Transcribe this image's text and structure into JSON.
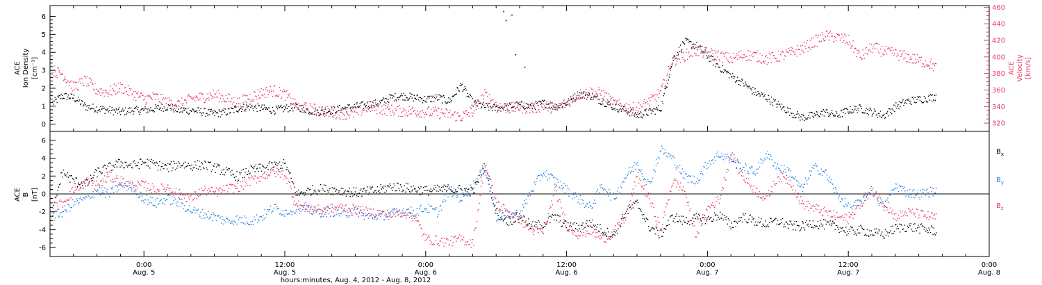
{
  "figure": {
    "xlabel": "hours:minutes, Aug.  4, 2012 - Aug.  8, 2012",
    "time_range_hours": [
      -8,
      72
    ],
    "x_ticks": [
      {
        "hour": 0,
        "time": "0:00",
        "date": "Aug. 5"
      },
      {
        "hour": 12,
        "time": "12:00",
        "date": "Aug. 5"
      },
      {
        "hour": 24,
        "time": "0:00",
        "date": "Aug. 6"
      },
      {
        "hour": 36,
        "time": "12:00",
        "date": "Aug. 6"
      },
      {
        "hour": 48,
        "time": "0:00",
        "date": "Aug. 7"
      },
      {
        "hour": 60,
        "time": "12:00",
        "date": "Aug. 7"
      },
      {
        "hour": 72,
        "time": "0:00",
        "date": "Aug. 8"
      }
    ]
  },
  "colors": {
    "black": "#000000",
    "blue": "#1f7fe0",
    "red": "#e8365f"
  },
  "chart_data": [
    {
      "type": "scatter",
      "panel": "top",
      "ylabel_left": [
        "ACE",
        "Ion Density",
        "[cm⁻³]"
      ],
      "ylabel_right": [
        "ACE",
        "Velocity",
        "[km/s]"
      ],
      "ylim_left": [
        -0.4,
        6.6
      ],
      "ylim_right": [
        310,
        462
      ],
      "yticks_left": [
        0,
        1,
        2,
        3,
        4,
        5,
        6
      ],
      "yticks_right": [
        320,
        340,
        360,
        380,
        400,
        420,
        440,
        460
      ],
      "series": [
        {
          "axis": "left",
          "color": "black",
          "x": [
            -7.8,
            -7,
            -6,
            -5,
            -4,
            -3,
            -2,
            -1,
            0,
            1,
            2,
            3,
            4,
            5,
            6,
            7,
            8,
            9,
            10,
            11,
            12,
            13,
            14,
            15,
            16,
            17,
            18,
            19,
            20,
            21,
            22,
            23,
            24,
            25,
            26,
            27,
            28,
            29,
            30,
            31,
            32,
            33,
            34,
            35,
            36,
            37,
            38,
            39,
            40,
            41,
            42,
            43,
            44,
            45,
            46,
            47,
            48,
            49,
            50,
            51,
            52,
            53,
            54,
            55,
            56,
            57,
            58,
            59,
            60,
            61,
            62,
            63,
            64,
            65,
            66,
            67,
            67.5
          ],
          "y": [
            1.2,
            1.6,
            1.5,
            1.0,
            0.9,
            0.8,
            0.7,
            0.8,
            0.8,
            0.9,
            1.0,
            0.8,
            0.8,
            0.7,
            0.6,
            0.7,
            0.9,
            1.0,
            0.9,
            0.8,
            0.9,
            1.0,
            0.8,
            0.7,
            0.8,
            0.9,
            1.0,
            1.1,
            1.2,
            1.5,
            1.6,
            1.5,
            1.4,
            1.5,
            1.3,
            2.2,
            1.2,
            1.0,
            0.9,
            1.0,
            1.1,
            1.0,
            1.2,
            1.0,
            1.2,
            1.7,
            1.6,
            1.3,
            1.0,
            0.8,
            0.5,
            0.7,
            0.9,
            3.6,
            4.6,
            4.4,
            3.8,
            3.2,
            2.7,
            2.3,
            1.8,
            1.5,
            1.1,
            0.7,
            0.4,
            0.5,
            0.7,
            0.5,
            0.8,
            0.9,
            0.7,
            0.5,
            1.0,
            1.3,
            1.4,
            1.5,
            1.6
          ],
          "spikes": [
            {
              "x": 30.6,
              "y": 6.3
            },
            {
              "x": 30.8,
              "y": 5.8
            },
            {
              "x": 31.3,
              "y": 6.1
            },
            {
              "x": 31.6,
              "y": 3.9
            },
            {
              "x": 32.4,
              "y": 3.2
            }
          ]
        },
        {
          "axis": "right",
          "color": "red",
          "x": [
            -7.8,
            -7,
            -6,
            -5,
            -4,
            -3,
            -2,
            -1,
            0,
            1,
            2,
            3,
            4,
            5,
            6,
            7,
            8,
            9,
            10,
            11,
            12,
            13,
            14,
            15,
            16,
            17,
            18,
            19,
            20,
            21,
            22,
            23,
            24,
            25,
            26,
            27,
            28,
            29,
            30,
            31,
            32,
            33,
            34,
            35,
            36,
            37,
            38,
            39,
            40,
            41,
            42,
            43,
            44,
            45,
            46,
            47,
            48,
            49,
            50,
            51,
            52,
            53,
            54,
            55,
            56,
            57,
            58,
            59,
            60,
            61,
            62,
            63,
            64,
            65,
            66,
            67,
            67.5
          ],
          "y": [
            384,
            380,
            364,
            372,
            360,
            358,
            364,
            356,
            350,
            352,
            345,
            343,
            350,
            352,
            355,
            350,
            345,
            352,
            357,
            360,
            355,
            340,
            338,
            336,
            333,
            332,
            332,
            340,
            338,
            336,
            335,
            335,
            334,
            333,
            331,
            328,
            335,
            355,
            342,
            338,
            340,
            338,
            342,
            338,
            345,
            355,
            358,
            356,
            344,
            340,
            338,
            346,
            358,
            396,
            402,
            408,
            405,
            402,
            398,
            403,
            402,
            398,
            401,
            405,
            410,
            418,
            426,
            424,
            420,
            400,
            412,
            407,
            404,
            400,
            396,
            392,
            386
          ]
        }
      ]
    },
    {
      "type": "scatter",
      "panel": "bottom",
      "ylabel_left": [
        "ACE",
        "B",
        "[nT]"
      ],
      "ylim": [
        -7,
        7
      ],
      "yticks": [
        -6,
        -4,
        -2,
        0,
        2,
        4,
        6
      ],
      "zero_line": true,
      "legend": [
        {
          "label": "B",
          "sub": "x",
          "color": "black"
        },
        {
          "label": "B",
          "sub": "y",
          "color": "blue"
        },
        {
          "label": "B",
          "sub": "z",
          "color": "red"
        }
      ],
      "series": [
        {
          "name": "Bx",
          "color": "black",
          "x": [
            -7.8,
            -7,
            -6,
            -5,
            -4,
            -3,
            -2,
            -1,
            0,
            1,
            2,
            3,
            4,
            5,
            6,
            7,
            8,
            9,
            10,
            11,
            12,
            13,
            14,
            15,
            16,
            17,
            18,
            19,
            20,
            21,
            22,
            23,
            24,
            25,
            26,
            27,
            28,
            29,
            30,
            31,
            32,
            33,
            34,
            35,
            36,
            37,
            38,
            39,
            40,
            41,
            42,
            43,
            44,
            45,
            46,
            47,
            48,
            49,
            50,
            51,
            52,
            53,
            54,
            55,
            56,
            57,
            58,
            59,
            60,
            61,
            62,
            63,
            64,
            65,
            66,
            67,
            67.5
          ],
          "y": [
            -2.0,
            2.5,
            1.5,
            1.0,
            2.5,
            3.0,
            3.5,
            3.2,
            3.6,
            3.3,
            3.0,
            3.4,
            3.2,
            3.3,
            3.0,
            2.5,
            2.0,
            2.7,
            2.9,
            3.2,
            3.4,
            0.0,
            0.4,
            0.6,
            0.5,
            0.4,
            0.2,
            0.3,
            0.5,
            0.9,
            0.8,
            0.6,
            0.4,
            0.5,
            0.6,
            0.5,
            0.3,
            3.2,
            -2.0,
            -3.0,
            -2.4,
            -3.6,
            -3.3,
            -2.5,
            -3.6,
            -3.7,
            -3.2,
            -4.0,
            -4.6,
            -2.0,
            -1.0,
            -3.6,
            -4.5,
            -2.5,
            -3.0,
            -2.7,
            -2.8,
            -2.3,
            -3.5,
            -2.5,
            -3.0,
            -3.3,
            -3.0,
            -3.5,
            -3.6,
            -3.2,
            -3.4,
            -3.6,
            -4.2,
            -4.0,
            -4.3,
            -4.5,
            -3.8,
            -3.6,
            -3.8,
            -4.0,
            -4.1
          ]
        },
        {
          "name": "By",
          "color": "blue",
          "x": [
            -7.8,
            -7,
            -6,
            -5,
            -4,
            -3,
            -2,
            -1,
            0,
            1,
            2,
            3,
            4,
            5,
            6,
            7,
            8,
            9,
            10,
            11,
            12,
            13,
            14,
            15,
            16,
            17,
            18,
            19,
            20,
            21,
            22,
            23,
            24,
            25,
            26,
            27,
            28,
            29,
            30,
            31,
            32,
            33,
            34,
            35,
            36,
            37,
            38,
            39,
            40,
            41,
            42,
            43,
            44,
            45,
            46,
            47,
            48,
            49,
            50,
            51,
            52,
            53,
            54,
            55,
            56,
            57,
            58,
            59,
            60,
            61,
            62,
            63,
            64,
            65,
            66,
            67,
            67.5
          ],
          "y": [
            -2.5,
            -2.0,
            -1.0,
            -0.5,
            0.5,
            0.0,
            1.0,
            0.8,
            -0.5,
            -1.0,
            -0.5,
            -1.0,
            -1.8,
            -2.2,
            -2.5,
            -3.0,
            -2.8,
            -3.0,
            -2.5,
            -1.5,
            -2.0,
            -1.5,
            -1.8,
            -2.0,
            -1.9,
            -2.2,
            -1.8,
            -2.5,
            -2.4,
            -2.2,
            -1.8,
            -2.0,
            -1.5,
            -2.0,
            0.5,
            -0.5,
            1.0,
            3.0,
            -2.5,
            -2.3,
            -2.2,
            0.5,
            2.5,
            1.5,
            0.5,
            -0.5,
            -1.5,
            1.0,
            -0.5,
            2.0,
            3.5,
            1.0,
            5.0,
            4.0,
            2.0,
            1.5,
            3.5,
            4.5,
            4.0,
            3.0,
            2.5,
            4.5,
            3.0,
            2.5,
            0.5,
            3.0,
            2.5,
            0.0,
            -1.5,
            -1.0,
            0.5,
            -1.5,
            1.0,
            0.2,
            0.0,
            0.3,
            0.4
          ]
        },
        {
          "name": "Bz",
          "color": "red",
          "x": [
            -7.8,
            -7,
            -6,
            -5,
            -4,
            -3,
            -2,
            -1,
            0,
            1,
            2,
            3,
            4,
            5,
            6,
            7,
            8,
            9,
            10,
            11,
            12,
            13,
            14,
            15,
            16,
            17,
            18,
            19,
            20,
            21,
            22,
            23,
            24,
            25,
            26,
            27,
            28,
            29,
            30,
            31,
            32,
            33,
            34,
            35,
            36,
            37,
            38,
            39,
            40,
            41,
            42,
            43,
            44,
            45,
            46,
            47,
            48,
            49,
            50,
            51,
            52,
            53,
            54,
            55,
            56,
            57,
            58,
            59,
            60,
            61,
            62,
            63,
            64,
            65,
            66,
            67,
            67.5
          ],
          "y": [
            -1.5,
            -1.0,
            0.5,
            1.5,
            1.0,
            2.0,
            1.5,
            1.0,
            1.0,
            0.5,
            0.8,
            0.0,
            -0.5,
            0.5,
            0.2,
            0.6,
            0.8,
            1.5,
            2.0,
            2.5,
            2.2,
            -1.2,
            -1.5,
            -1.8,
            -1.6,
            -1.4,
            -1.7,
            -2.0,
            -2.1,
            -2.3,
            -2.0,
            -2.5,
            -5.0,
            -5.2,
            -5.3,
            -5.0,
            -5.5,
            3.5,
            -1.0,
            -2.0,
            -2.8,
            -4.0,
            -4.2,
            0.5,
            -3.5,
            -4.5,
            -4.0,
            -5.0,
            -4.3,
            -2.5,
            2.0,
            -0.5,
            -4.0,
            1.5,
            0.5,
            -4.5,
            -1.5,
            -0.5,
            4.5,
            2.0,
            0.5,
            -0.5,
            2.0,
            1.5,
            -1.0,
            -1.5,
            -2.0,
            -2.5,
            -2.8,
            -1.0,
            0.5,
            -1.0,
            -2.5,
            -2.0,
            -2.2,
            -2.5,
            -2.6
          ]
        }
      ]
    }
  ]
}
